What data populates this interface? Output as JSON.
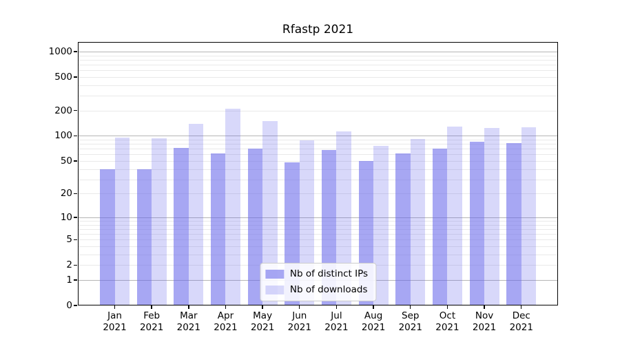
{
  "chart_data": {
    "type": "bar",
    "title": "Rfastp 2021",
    "categories": [
      "Jan",
      "Feb",
      "Mar",
      "Apr",
      "May",
      "Jun",
      "Jul",
      "Aug",
      "Sep",
      "Oct",
      "Nov",
      "Dec"
    ],
    "category_year": "2021",
    "series": [
      {
        "name": "Nb of distinct IPs",
        "color": "rgba(104,104,235,0.58)",
        "values": [
          40,
          40,
          72,
          62,
          71,
          48,
          68,
          50,
          62,
          71,
          85,
          82
        ]
      },
      {
        "name": "Nb of downloads",
        "color": "rgba(104,104,235,0.26)",
        "values": [
          96,
          93,
          140,
          210,
          150,
          89,
          113,
          76,
          92,
          128,
          125,
          126
        ]
      }
    ],
    "xlabel": "",
    "ylabel": "",
    "y_scale": "log10(1+x)",
    "ylim": [
      0,
      1300
    ],
    "y_ticks": [
      1000,
      500,
      200,
      100,
      50,
      20,
      10,
      5,
      2,
      1,
      0
    ],
    "grid": {
      "on": true,
      "major_values": [
        1,
        10,
        100,
        1000
      ],
      "minor_values": [
        2,
        3,
        4,
        5,
        6,
        7,
        8,
        9,
        20,
        30,
        40,
        50,
        60,
        70,
        80,
        90,
        200,
        300,
        400,
        500,
        600,
        700,
        800,
        900
      ],
      "major_color": "#b4b4b4",
      "minor_color": "#e9e9e9"
    },
    "legend_position": "lower center",
    "colors": {
      "axis": "#000000",
      "background": "#ffffff"
    }
  }
}
